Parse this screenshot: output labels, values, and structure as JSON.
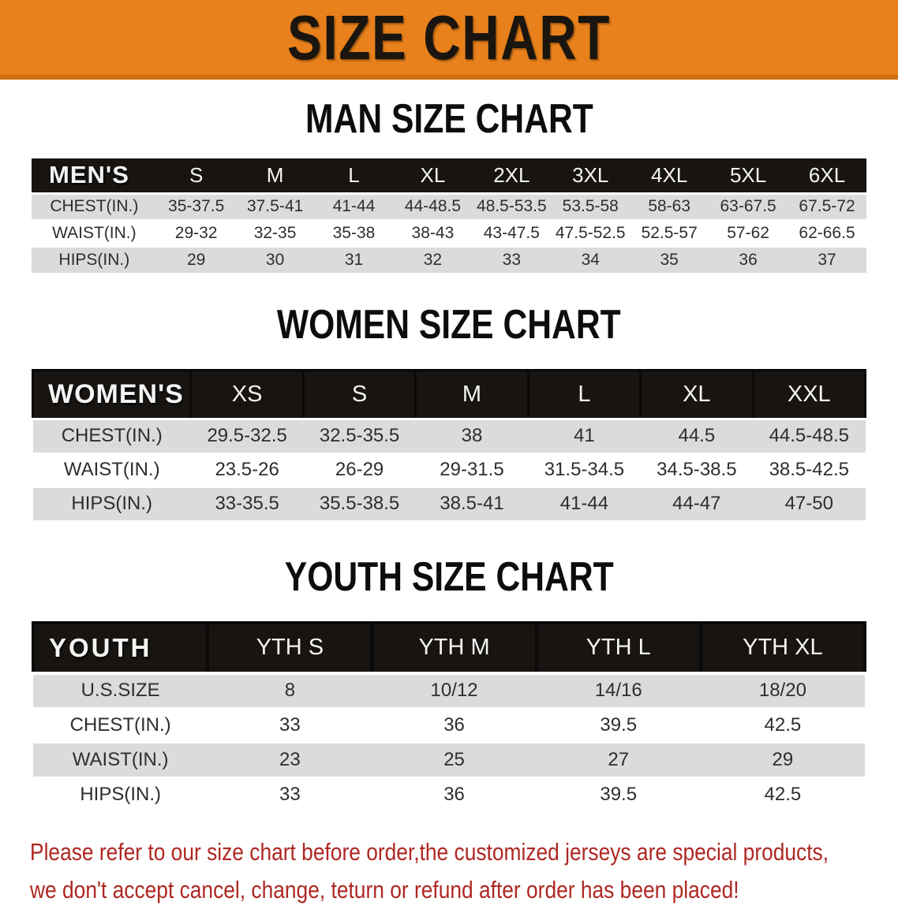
{
  "banner": {
    "title": "SIZE CHART"
  },
  "colors": {
    "banner_bg": "#E8801B",
    "banner_edge": "#CD6F12",
    "banner_text": "#1A150F",
    "header_bg": "#171412",
    "header_text": "#F4F4F2",
    "row_alt_bg": "#DBDBDB",
    "row_bg": "#FFFFFF",
    "cell_text": "#2E2E2E",
    "disclaimer_text": "#AE2823"
  },
  "sections": [
    {
      "id": "men",
      "heading": "MAN SIZE CHART",
      "table": {
        "corner_label": "MEN'S",
        "columns": [
          "S",
          "M",
          "L",
          "XL",
          "2XL",
          "3XL",
          "4XL",
          "5XL",
          "6XL"
        ],
        "rows": [
          {
            "label": "CHEST(IN.)",
            "values": [
              "35-37.5",
              "37.5-41",
              "41-44",
              "44-48.5",
              "48.5-53.5",
              "53.5-58",
              "58-63",
              "63-67.5",
              "67.5-72"
            ]
          },
          {
            "label": "WAIST(IN.)",
            "values": [
              "29-32",
              "32-35",
              "35-38",
              "38-43",
              "43-47.5",
              "47.5-52.5",
              "52.5-57",
              "57-62",
              "62-66.5"
            ]
          },
          {
            "label": "HIPS(IN.)",
            "values": [
              "29",
              "30",
              "31",
              "32",
              "33",
              "34",
              "35",
              "36",
              "37"
            ]
          }
        ]
      }
    },
    {
      "id": "women",
      "heading": "WOMEN SIZE CHART",
      "table": {
        "corner_label": "WOMEN'S",
        "columns": [
          "XS",
          "S",
          "M",
          "L",
          "XL",
          "XXL"
        ],
        "rows": [
          {
            "label": "CHEST(IN.)",
            "values": [
              "29.5-32.5",
              "32.5-35.5",
              "38",
              "41",
              "44.5",
              "44.5-48.5"
            ]
          },
          {
            "label": "WAIST(IN.)",
            "values": [
              "23.5-26",
              "26-29",
              "29-31.5",
              "31.5-34.5",
              "34.5-38.5",
              "38.5-42.5"
            ]
          },
          {
            "label": "HIPS(IN.)",
            "values": [
              "33-35.5",
              "35.5-38.5",
              "38.5-41",
              "41-44",
              "44-47",
              "47-50"
            ]
          }
        ]
      }
    },
    {
      "id": "youth",
      "heading": "YOUTH SIZE CHART",
      "table": {
        "corner_label": "YOUTH",
        "columns": [
          "YTH S",
          "YTH M",
          "YTH L",
          "YTH XL"
        ],
        "rows": [
          {
            "label": "U.S.SIZE",
            "values": [
              "8",
              "10/12",
              "14/16",
              "18/20"
            ]
          },
          {
            "label": "CHEST(IN.)",
            "values": [
              "33",
              "36",
              "39.5",
              "42.5"
            ]
          },
          {
            "label": "WAIST(IN.)",
            "values": [
              "23",
              "25",
              "27",
              "29"
            ]
          },
          {
            "label": "HIPS(IN.)",
            "values": [
              "33",
              "36",
              "39.5",
              "42.5"
            ]
          }
        ]
      }
    }
  ],
  "disclaimer": {
    "lines": [
      "Please refer to our size chart before order,the customized jerseys are special products,",
      "we don't accept cancel, change, teturn or refund after order has been placed!"
    ]
  }
}
